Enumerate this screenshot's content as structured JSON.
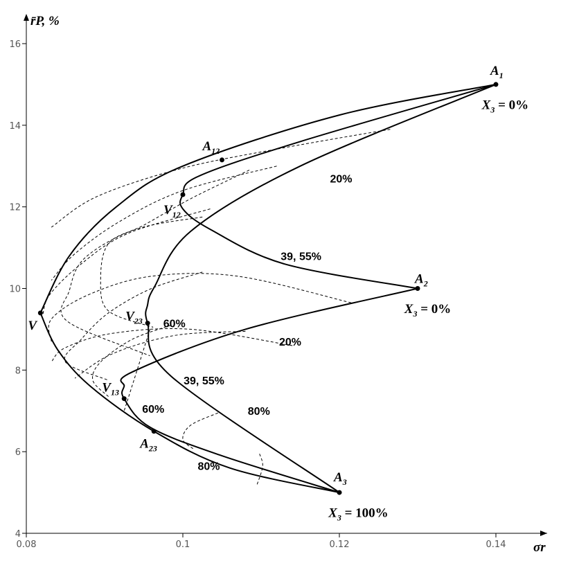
{
  "chart_data": {
    "type": "line",
    "xlabel": "σr",
    "ylabel": "r̄P, %",
    "xlim": [
      0.08,
      0.147
    ],
    "ylim": [
      4,
      16.7
    ],
    "x_ticks": [
      {
        "value": 0.08,
        "label": "0.08"
      },
      {
        "value": 0.1,
        "label": "0.1"
      },
      {
        "value": 0.12,
        "label": "0.12"
      },
      {
        "value": 0.14,
        "label": "0.14"
      }
    ],
    "y_ticks": [
      {
        "value": 4,
        "label": "4"
      },
      {
        "value": 6,
        "label": "6"
      },
      {
        "value": 8,
        "label": "8"
      },
      {
        "value": 10,
        "label": "10"
      },
      {
        "value": 12,
        "label": "12"
      },
      {
        "value": 14,
        "label": "14"
      },
      {
        "value": 16,
        "label": "16"
      }
    ],
    "points": [
      {
        "id": "A1",
        "name": "A",
        "sub": "1",
        "x": 0.14,
        "y": 15.0
      },
      {
        "id": "A2",
        "name": "A",
        "sub": "2",
        "x": 0.13,
        "y": 10.0
      },
      {
        "id": "A3",
        "name": "A",
        "sub": "3",
        "x": 0.12,
        "y": 5.0
      },
      {
        "id": "A12",
        "name": "A",
        "sub": "12",
        "x": 0.105,
        "y": 13.15
      },
      {
        "id": "A23",
        "name": "A",
        "sub": "23",
        "x": 0.0963,
        "y": 6.5
      },
      {
        "id": "V",
        "name": "V",
        "sub": "",
        "x": 0.0818,
        "y": 9.4
      },
      {
        "id": "V12",
        "name": "V",
        "sub": "12",
        "x": 0.1,
        "y": 12.3
      },
      {
        "id": "V23",
        "name": "V",
        "sub": "23",
        "x": 0.0955,
        "y": 9.15
      },
      {
        "id": "V13",
        "name": "V",
        "sub": "13",
        "x": 0.0925,
        "y": 7.3
      }
    ],
    "annotations": [
      {
        "id": "x3-a1",
        "text": "X",
        "sub": "3",
        "rest": " = 0%",
        "x": 0.1382,
        "y": 14.4
      },
      {
        "id": "x3-a2",
        "text": "X",
        "sub": "3",
        "rest": " = 0%",
        "x": 0.1283,
        "y": 9.4
      },
      {
        "id": "x3-a3",
        "text": "X",
        "sub": "3",
        "rest": " = 100%",
        "x": 0.1186,
        "y": 4.4
      },
      {
        "id": "pct-20-upper",
        "text": "20%",
        "x": 0.1188,
        "y": 12.6
      },
      {
        "id": "pct-3955-upper",
        "text": "39, 55%",
        "x": 0.1125,
        "y": 10.7
      },
      {
        "id": "pct-60-upper",
        "text": "60%",
        "x": 0.0975,
        "y": 9.05
      },
      {
        "id": "pct-20-lower",
        "text": "20%",
        "x": 0.1123,
        "y": 8.6
      },
      {
        "id": "pct-3955-lower",
        "text": "39, 55%",
        "x": 0.1001,
        "y": 7.65
      },
      {
        "id": "pct-80-upper",
        "text": "80%",
        "x": 0.1083,
        "y": 6.9
      },
      {
        "id": "pct-60-lower",
        "text": "60%",
        "x": 0.0948,
        "y": 6.95
      },
      {
        "id": "pct-80-lower",
        "text": "80%",
        "x": 0.1019,
        "y": 5.55
      }
    ],
    "series": [
      {
        "id": "outer-upper-boundary",
        "style": "solid",
        "x": [
          0.14,
          0.12,
          0.1,
          0.0915,
          0.0855,
          0.0818
        ],
        "y": [
          15.0,
          14.25,
          13.0,
          12.0,
          10.8,
          9.4
        ]
      },
      {
        "id": "outer-lower-boundary",
        "style": "solid",
        "x": [
          0.0818,
          0.084,
          0.0882,
          0.0963,
          0.106,
          0.12
        ],
        "y": [
          9.4,
          8.5,
          7.6,
          6.5,
          5.6,
          5.0
        ]
      },
      {
        "id": "edge-a1-a2",
        "style": "solid",
        "x": [
          0.14,
          0.115,
          0.102,
          0.1,
          0.1,
          0.1035,
          0.113,
          0.13
        ],
        "y": [
          15.0,
          13.6,
          12.75,
          12.3,
          11.95,
          11.45,
          10.6,
          10.0
        ]
      },
      {
        "id": "edge-a2-a3",
        "style": "solid",
        "x": [
          0.13,
          0.108,
          0.0935,
          0.0925,
          0.0925,
          0.0958,
          0.105,
          0.12
        ],
        "y": [
          10.0,
          9.0,
          7.95,
          7.6,
          7.3,
          6.6,
          5.9,
          5.0
        ]
      },
      {
        "id": "edge-a1-a3",
        "style": "solid",
        "x": [
          0.14,
          0.115,
          0.101,
          0.0964,
          0.0955,
          0.0955,
          0.0985,
          0.12
        ],
        "y": [
          15.0,
          13.0,
          11.4,
          10.05,
          9.6,
          9.15,
          7.85,
          5.0
        ]
      },
      {
        "id": "grid-a",
        "style": "dashed",
        "x": [
          0.1265,
          0.113,
          0.1,
          0.089,
          0.0832
        ],
        "y": [
          13.9,
          13.45,
          12.95,
          12.25,
          11.5
        ]
      },
      {
        "id": "grid-b",
        "style": "dashed",
        "x": [
          0.112,
          0.1,
          0.092,
          0.0862,
          0.0832
        ],
        "y": [
          13.0,
          12.4,
          11.65,
          10.85,
          10.2
        ]
      },
      {
        "id": "grid-c",
        "style": "dashed",
        "x": [
          0.1035,
          0.093,
          0.087,
          0.083,
          0.0821
        ],
        "y": [
          11.95,
          11.35,
          10.6,
          9.85,
          9.35
        ]
      },
      {
        "id": "grid-d",
        "style": "dashed",
        "x": [
          0.1215,
          0.107,
          0.096,
          0.088,
          0.0832,
          0.0832
        ],
        "y": [
          9.65,
          10.3,
          10.3,
          9.85,
          9.25,
          8.7
        ]
      },
      {
        "id": "grid-e",
        "style": "dashed",
        "x": [
          0.114,
          0.101,
          0.091,
          0.085,
          0.0832
        ],
        "y": [
          8.6,
          9.0,
          8.9,
          8.55,
          8.2
        ]
      },
      {
        "id": "grid-f",
        "style": "dashed",
        "x": [
          0.108,
          0.099,
          0.091,
          0.0862
        ],
        "y": [
          8.95,
          8.85,
          8.4,
          7.8
        ]
      },
      {
        "id": "grid-g",
        "style": "dashed",
        "x": [
          0.1085,
          0.101,
          0.095,
          0.0905,
          0.0895,
          0.0905,
          0.0962
        ],
        "y": [
          12.9,
          12.2,
          11.55,
          11.1,
          10.2,
          9.45,
          9.05
        ]
      },
      {
        "id": "grid-h",
        "style": "dashed",
        "x": [
          0.1025,
          0.094,
          0.0875,
          0.0855,
          0.0852,
          0.0958
        ],
        "y": [
          11.75,
          11.45,
          10.75,
          9.95,
          9.2,
          8.35
        ]
      },
      {
        "id": "grid-i",
        "style": "dashed",
        "x": [
          0.1025,
          0.096,
          0.0905,
          0.087,
          0.085,
          0.0905
        ],
        "y": [
          10.4,
          10.0,
          9.4,
          8.75,
          8.2,
          7.75
        ]
      },
      {
        "id": "grid-j",
        "style": "dashed",
        "x": [
          0.0985,
          0.0935,
          0.0895,
          0.0885,
          0.0905
        ],
        "y": [
          9.1,
          8.75,
          8.2,
          7.75,
          7.35
        ]
      },
      {
        "id": "grid-k",
        "style": "dashed",
        "x": [
          0.0958,
          0.0935,
          0.0925
        ],
        "y": [
          9.0,
          7.6,
          7.0
        ]
      },
      {
        "id": "grid-l",
        "style": "dashed",
        "x": [
          0.1045,
          0.101,
          0.1,
          0.1015
        ],
        "y": [
          6.95,
          6.65,
          6.3,
          6.05
        ]
      },
      {
        "id": "grid-m",
        "style": "dashed",
        "x": [
          0.1095,
          0.1102,
          0.1098
        ],
        "y": [
          5.2,
          5.65,
          5.95
        ]
      }
    ]
  }
}
